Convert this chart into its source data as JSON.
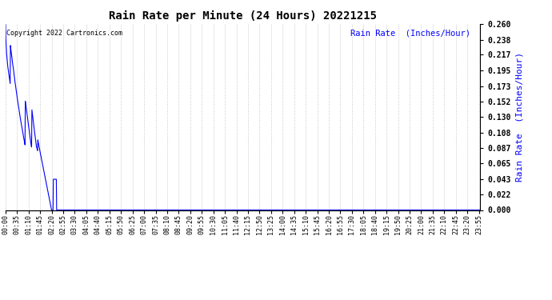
{
  "title": "Rain Rate per Minute (24 Hours) 20221215",
  "copyright_text": "Copyright 2022 Cartronics.com",
  "ylabel": "Rain Rate  (Inches/Hour)",
  "ylabel_color": "#0000ff",
  "background_color": "#ffffff",
  "plot_bg_color": "#ffffff",
  "line_color": "#0000ff",
  "grid_color": "#bbbbbb",
  "ylim": [
    0.0,
    0.26
  ],
  "yticks": [
    0.0,
    0.022,
    0.043,
    0.065,
    0.087,
    0.108,
    0.13,
    0.152,
    0.173,
    0.195,
    0.217,
    0.238,
    0.26
  ],
  "total_minutes": 1440,
  "x_tick_interval": 35,
  "rain_data": [
    [
      0,
      0.26
    ],
    [
      1,
      0.24
    ],
    [
      2,
      0.23
    ],
    [
      3,
      0.22
    ],
    [
      4,
      0.215
    ],
    [
      5,
      0.21
    ],
    [
      6,
      0.205
    ],
    [
      7,
      0.2
    ],
    [
      8,
      0.197
    ],
    [
      9,
      0.193
    ],
    [
      10,
      0.19
    ],
    [
      11,
      0.187
    ],
    [
      12,
      0.184
    ],
    [
      13,
      0.18
    ],
    [
      14,
      0.177
    ],
    [
      15,
      0.23
    ],
    [
      16,
      0.225
    ],
    [
      17,
      0.222
    ],
    [
      18,
      0.218
    ],
    [
      19,
      0.215
    ],
    [
      20,
      0.21
    ],
    [
      21,
      0.207
    ],
    [
      22,
      0.203
    ],
    [
      23,
      0.2
    ],
    [
      24,
      0.197
    ],
    [
      25,
      0.193
    ],
    [
      26,
      0.19
    ],
    [
      27,
      0.186
    ],
    [
      28,
      0.182
    ],
    [
      29,
      0.178
    ],
    [
      30,
      0.175
    ],
    [
      31,
      0.172
    ],
    [
      32,
      0.168
    ],
    [
      33,
      0.165
    ],
    [
      34,
      0.162
    ],
    [
      35,
      0.158
    ],
    [
      36,
      0.155
    ],
    [
      37,
      0.152
    ],
    [
      38,
      0.149
    ],
    [
      39,
      0.146
    ],
    [
      40,
      0.143
    ],
    [
      41,
      0.14
    ],
    [
      42,
      0.137
    ],
    [
      43,
      0.134
    ],
    [
      44,
      0.131
    ],
    [
      45,
      0.128
    ],
    [
      46,
      0.125
    ],
    [
      47,
      0.123
    ],
    [
      48,
      0.12
    ],
    [
      49,
      0.117
    ],
    [
      50,
      0.115
    ],
    [
      51,
      0.112
    ],
    [
      52,
      0.109
    ],
    [
      53,
      0.107
    ],
    [
      54,
      0.104
    ],
    [
      55,
      0.101
    ],
    [
      56,
      0.099
    ],
    [
      57,
      0.096
    ],
    [
      58,
      0.094
    ],
    [
      59,
      0.091
    ],
    [
      60,
      0.152
    ],
    [
      61,
      0.148
    ],
    [
      62,
      0.145
    ],
    [
      63,
      0.142
    ],
    [
      64,
      0.138
    ],
    [
      65,
      0.135
    ],
    [
      66,
      0.131
    ],
    [
      67,
      0.128
    ],
    [
      68,
      0.124
    ],
    [
      69,
      0.121
    ],
    [
      70,
      0.117
    ],
    [
      71,
      0.114
    ],
    [
      72,
      0.11
    ],
    [
      73,
      0.107
    ],
    [
      74,
      0.104
    ],
    [
      75,
      0.1
    ],
    [
      76,
      0.097
    ],
    [
      77,
      0.093
    ],
    [
      78,
      0.09
    ],
    [
      79,
      0.088
    ],
    [
      80,
      0.14
    ],
    [
      81,
      0.136
    ],
    [
      82,
      0.132
    ],
    [
      83,
      0.128
    ],
    [
      84,
      0.124
    ],
    [
      85,
      0.12
    ],
    [
      86,
      0.116
    ],
    [
      87,
      0.113
    ],
    [
      88,
      0.109
    ],
    [
      89,
      0.106
    ],
    [
      90,
      0.102
    ],
    [
      91,
      0.098
    ],
    [
      92,
      0.095
    ],
    [
      93,
      0.091
    ],
    [
      94,
      0.088
    ],
    [
      95,
      0.087
    ],
    [
      96,
      0.085
    ],
    [
      97,
      0.083
    ],
    [
      98,
      0.098
    ],
    [
      99,
      0.095
    ],
    [
      100,
      0.093
    ],
    [
      101,
      0.09
    ],
    [
      102,
      0.088
    ],
    [
      103,
      0.086
    ],
    [
      104,
      0.083
    ],
    [
      105,
      0.081
    ],
    [
      106,
      0.078
    ],
    [
      107,
      0.076
    ],
    [
      108,
      0.074
    ],
    [
      109,
      0.071
    ],
    [
      110,
      0.069
    ],
    [
      111,
      0.067
    ],
    [
      112,
      0.064
    ],
    [
      113,
      0.062
    ],
    [
      114,
      0.06
    ],
    [
      115,
      0.057
    ],
    [
      116,
      0.055
    ],
    [
      117,
      0.053
    ],
    [
      118,
      0.05
    ],
    [
      119,
      0.048
    ],
    [
      120,
      0.046
    ],
    [
      121,
      0.043
    ],
    [
      122,
      0.041
    ],
    [
      123,
      0.039
    ],
    [
      124,
      0.036
    ],
    [
      125,
      0.034
    ],
    [
      126,
      0.032
    ],
    [
      127,
      0.029
    ],
    [
      128,
      0.027
    ],
    [
      129,
      0.025
    ],
    [
      130,
      0.022
    ],
    [
      131,
      0.02
    ],
    [
      132,
      0.018
    ],
    [
      133,
      0.015
    ],
    [
      134,
      0.013
    ],
    [
      135,
      0.011
    ],
    [
      136,
      0.008
    ],
    [
      137,
      0.006
    ],
    [
      138,
      0.004
    ],
    [
      139,
      0.001
    ],
    [
      140,
      0.0
    ],
    [
      141,
      0.0
    ],
    [
      142,
      0.0
    ],
    [
      143,
      0.0
    ],
    [
      144,
      0.0
    ],
    [
      145,
      0.043
    ],
    [
      146,
      0.043
    ],
    [
      147,
      0.043
    ],
    [
      148,
      0.043
    ],
    [
      149,
      0.043
    ],
    [
      150,
      0.043
    ],
    [
      151,
      0.043
    ],
    [
      152,
      0.043
    ],
    [
      153,
      0.043
    ],
    [
      154,
      0.043
    ],
    [
      155,
      0.0
    ]
  ],
  "zero_from": 155
}
